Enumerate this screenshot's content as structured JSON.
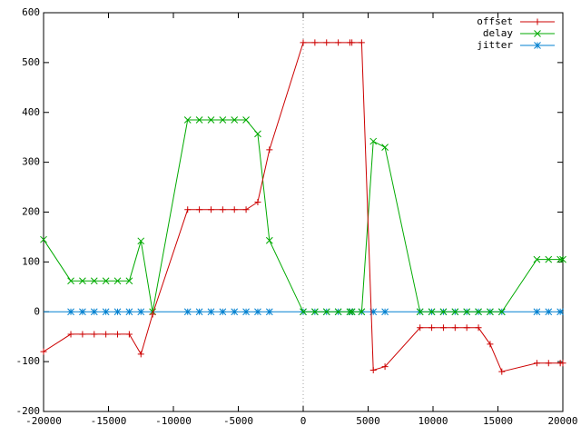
{
  "chart_data": {
    "type": "line",
    "title": "",
    "xlabel": "",
    "ylabel": "",
    "xlim": [
      -20000,
      20000
    ],
    "ylim": [
      -200,
      600
    ],
    "xticks": [
      -20000,
      -15000,
      -10000,
      -5000,
      0,
      5000,
      10000,
      15000,
      20000
    ],
    "yticks": [
      -200,
      -100,
      0,
      100,
      200,
      300,
      400,
      500,
      600
    ],
    "xtick_labels": [
      "-20000",
      "-15000",
      "-10000",
      "-5000",
      "0",
      "5000",
      "10000",
      "15000",
      "20000"
    ],
    "ytick_labels": [
      "-200",
      "-100",
      "0",
      "100",
      "200",
      "300",
      "400",
      "500",
      "600"
    ],
    "grid": false,
    "zero_line_x": 0,
    "legend": "top-right",
    "series": [
      {
        "name": "offset",
        "color": "#cc0000",
        "marker": "plus",
        "x": [
          -20000,
          -17900,
          -17000,
          -16100,
          -15200,
          -14300,
          -13400,
          -12500,
          -11600,
          -8900,
          -8000,
          -7100,
          -6200,
          -5300,
          -4400,
          -3500,
          -2600,
          0,
          900,
          1800,
          2700,
          3600,
          3750,
          4500,
          5400,
          6300,
          9000,
          9900,
          10800,
          11700,
          12600,
          13500,
          14400,
          15300,
          18000,
          18900,
          19800,
          20000
        ],
        "y": [
          -80,
          -45,
          -45,
          -45,
          -45,
          -45,
          -45,
          -85,
          -5,
          205,
          205,
          205,
          205,
          205,
          205,
          220,
          325,
          540,
          540,
          540,
          540,
          540,
          540,
          540,
          -117,
          -110,
          -32,
          -32,
          -32,
          -32,
          -32,
          -32,
          -65,
          -120,
          -103,
          -103,
          -103,
          -103
        ]
      },
      {
        "name": "delay",
        "color": "#00aa00",
        "marker": "x",
        "x": [
          -20000,
          -17900,
          -17000,
          -16100,
          -15200,
          -14300,
          -13400,
          -12500,
          -11600,
          -8900,
          -8000,
          -7100,
          -6200,
          -5300,
          -4400,
          -3500,
          -2600,
          0,
          900,
          1800,
          2700,
          3600,
          3750,
          4500,
          5400,
          6300,
          9000,
          9900,
          10800,
          11700,
          12600,
          13500,
          14400,
          15300,
          18000,
          18900,
          19800,
          20000
        ],
        "y": [
          145,
          62,
          62,
          62,
          62,
          62,
          62,
          142,
          0,
          385,
          385,
          385,
          385,
          385,
          385,
          357,
          143,
          0,
          0,
          0,
          0,
          0,
          0,
          0,
          342,
          330,
          0,
          0,
          0,
          0,
          0,
          0,
          0,
          0,
          105,
          105,
          105,
          105
        ]
      },
      {
        "name": "jitter",
        "color": "#0080d0",
        "marker": "star",
        "x": [
          -17900,
          -17000,
          -16100,
          -15200,
          -14300,
          -13400,
          -12500,
          -8900,
          -8000,
          -7100,
          -6200,
          -5300,
          -4400,
          -3500,
          -2600,
          0,
          900,
          1800,
          2700,
          3600,
          3750,
          4500,
          5400,
          6300,
          9000,
          9900,
          10800,
          11700,
          12600,
          13500,
          14400,
          15300,
          18000,
          18900,
          19800
        ],
        "y": [
          0,
          0,
          0,
          0,
          0,
          0,
          0,
          0,
          0,
          0,
          0,
          0,
          0,
          0,
          0,
          0,
          0,
          0,
          0,
          0,
          0,
          0,
          0,
          0,
          0,
          0,
          0,
          0,
          0,
          0,
          0,
          0,
          0,
          0,
          0
        ],
        "line_x": [
          -20000,
          20000
        ],
        "line_y": [
          0,
          0
        ]
      }
    ]
  }
}
